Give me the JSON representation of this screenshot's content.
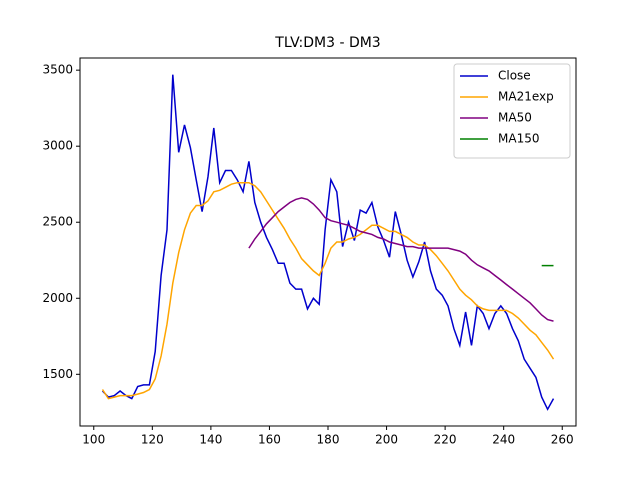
{
  "chart_data": {
    "type": "line",
    "title": "TLV:DM3 - DM3",
    "x": [
      103,
      105,
      107,
      109,
      111,
      113,
      115,
      117,
      119,
      121,
      123,
      125,
      127,
      129,
      131,
      133,
      135,
      137,
      139,
      141,
      143,
      145,
      147,
      149,
      151,
      153,
      155,
      157,
      159,
      161,
      163,
      165,
      167,
      169,
      171,
      173,
      175,
      177,
      179,
      181,
      183,
      185,
      187,
      189,
      191,
      193,
      195,
      197,
      199,
      201,
      203,
      205,
      207,
      209,
      211,
      213,
      215,
      217,
      219,
      221,
      223,
      225,
      227,
      229,
      231,
      233,
      235,
      237,
      239,
      241,
      243,
      245,
      247,
      249,
      251,
      253,
      255,
      257
    ],
    "series": [
      {
        "name": "Close",
        "color": "#0000cc",
        "values": [
          1390,
          1350,
          1360,
          1390,
          1360,
          1340,
          1420,
          1430,
          1430,
          1650,
          2150,
          2450,
          3470,
          2960,
          3140,
          2990,
          2780,
          2570,
          2800,
          3120,
          2760,
          2840,
          2840,
          2780,
          2700,
          2900,
          2630,
          2500,
          2400,
          2320,
          2230,
          2230,
          2100,
          2060,
          2060,
          1930,
          2000,
          1960,
          2450,
          2780,
          2700,
          2340,
          2500,
          2380,
          2580,
          2560,
          2630,
          2470,
          2380,
          2270,
          2570,
          2420,
          2250,
          2140,
          2240,
          2370,
          2180,
          2060,
          2020,
          1950,
          1800,
          1690,
          1910,
          1690,
          1950,
          1900,
          1800,
          1900,
          1950,
          1900,
          1800,
          1720,
          1600,
          1540,
          1480,
          1350,
          1270,
          1340
        ]
      },
      {
        "name": "MA21exp",
        "color": "#ffa500",
        "values": [
          1400,
          1340,
          1350,
          1360,
          1360,
          1360,
          1370,
          1380,
          1400,
          1470,
          1620,
          1830,
          2100,
          2300,
          2450,
          2560,
          2610,
          2610,
          2640,
          2700,
          2710,
          2730,
          2750,
          2760,
          2760,
          2760,
          2740,
          2700,
          2640,
          2580,
          2520,
          2460,
          2390,
          2330,
          2260,
          2220,
          2180,
          2150,
          2230,
          2330,
          2370,
          2370,
          2390,
          2400,
          2420,
          2450,
          2480,
          2480,
          2460,
          2440,
          2440,
          2420,
          2400,
          2370,
          2350,
          2350,
          2320,
          2280,
          2230,
          2180,
          2120,
          2060,
          2020,
          1990,
          1950,
          1930,
          1920,
          1920,
          1920,
          1920,
          1900,
          1870,
          1830,
          1790,
          1760,
          1710,
          1660,
          1600
        ]
      },
      {
        "name": "MA50",
        "color": "#800080",
        "values": [
          null,
          null,
          null,
          null,
          null,
          null,
          null,
          null,
          null,
          null,
          null,
          null,
          null,
          null,
          null,
          null,
          null,
          null,
          null,
          null,
          null,
          null,
          null,
          null,
          null,
          2330,
          2390,
          2440,
          2490,
          2530,
          2570,
          2600,
          2630,
          2650,
          2660,
          2650,
          2620,
          2580,
          2530,
          2510,
          2500,
          2490,
          2480,
          2460,
          2440,
          2430,
          2420,
          2400,
          2390,
          2370,
          2360,
          2350,
          2340,
          2340,
          2330,
          2330,
          2330,
          2330,
          2330,
          2330,
          2320,
          2310,
          2290,
          2250,
          2220,
          2200,
          2180,
          2150,
          2120,
          2090,
          2060,
          2030,
          2000,
          1970,
          1930,
          1890,
          1860,
          1850
        ]
      },
      {
        "name": "MA150",
        "color": "#008000",
        "values": [
          null,
          null,
          null,
          null,
          null,
          null,
          null,
          null,
          null,
          null,
          null,
          null,
          null,
          null,
          null,
          null,
          null,
          null,
          null,
          null,
          null,
          null,
          null,
          null,
          null,
          null,
          null,
          null,
          null,
          null,
          null,
          null,
          null,
          null,
          null,
          null,
          null,
          null,
          null,
          null,
          null,
          null,
          null,
          null,
          null,
          null,
          null,
          null,
          null,
          null,
          null,
          null,
          null,
          null,
          null,
          null,
          null,
          null,
          null,
          null,
          null,
          null,
          null,
          null,
          null,
          null,
          null,
          null,
          null,
          null,
          null,
          null,
          null,
          null,
          null,
          2215,
          2215,
          2215
        ]
      }
    ],
    "xlim": [
      95.3,
      264.7
    ],
    "xticks": [
      100,
      120,
      140,
      160,
      180,
      200,
      220,
      240,
      260
    ],
    "ylim": [
      1160,
      3580
    ],
    "yticks": [
      1500,
      2000,
      2500,
      3000,
      3500
    ],
    "legend": "upper right"
  }
}
